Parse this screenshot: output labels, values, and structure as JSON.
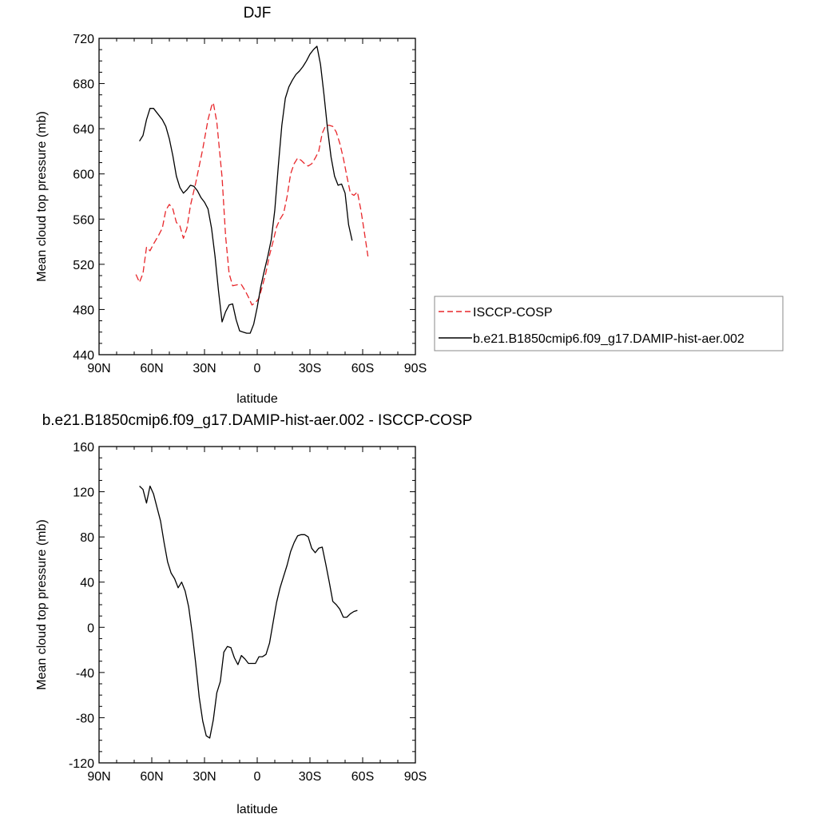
{
  "chart_data": [
    {
      "type": "line",
      "title": "DJF",
      "xlabel": "latitude",
      "ylabel": "Mean cloud top pressure (mb)",
      "xlim": [
        -90,
        90
      ],
      "ylim": [
        440,
        720
      ],
      "xticks": [
        {
          "value": -90,
          "label": "90N"
        },
        {
          "value": -60,
          "label": "60N"
        },
        {
          "value": -30,
          "label": "30N"
        },
        {
          "value": 0,
          "label": "0"
        },
        {
          "value": 30,
          "label": "30S"
        },
        {
          "value": 60,
          "label": "60S"
        },
        {
          "value": 90,
          "label": "90S"
        }
      ],
      "yticks": [
        440,
        480,
        520,
        560,
        600,
        640,
        680,
        720
      ],
      "legend_position": "right",
      "series": [
        {
          "name": "ISCCP-COSP",
          "color": "#e8262a",
          "dash": "dashed",
          "points": [
            [
              -69,
              511
            ],
            [
              -67,
              504
            ],
            [
              -65,
              512
            ],
            [
              -63,
              535
            ],
            [
              -61,
              532
            ],
            [
              -59,
              538
            ],
            [
              -56,
              546
            ],
            [
              -54,
              552
            ],
            [
              -52,
              568
            ],
            [
              -50,
              573
            ],
            [
              -48,
              569
            ],
            [
              -46,
              557
            ],
            [
              -44,
              554
            ],
            [
              -42,
              543
            ],
            [
              -40,
              552
            ],
            [
              -38,
              572
            ],
            [
              -35,
              592
            ],
            [
              -31,
              622
            ],
            [
              -28,
              648
            ],
            [
              -26,
              660
            ],
            [
              -25,
              663
            ],
            [
              -23,
              646
            ],
            [
              -20,
              597
            ],
            [
              -18,
              545
            ],
            [
              -16,
              512
            ],
            [
              -14,
              501
            ],
            [
              -11,
              502
            ],
            [
              -9,
              502
            ],
            [
              -7,
              497
            ],
            [
              -5,
              491
            ],
            [
              -3,
              484
            ],
            [
              -1,
              486
            ],
            [
              1,
              490
            ],
            [
              3,
              501
            ],
            [
              5,
              513
            ],
            [
              7,
              528
            ],
            [
              9,
              540
            ],
            [
              11,
              553
            ],
            [
              13,
              560
            ],
            [
              15,
              565
            ],
            [
              17,
              580
            ],
            [
              19,
              600
            ],
            [
              21,
              609
            ],
            [
              23,
              614
            ],
            [
              25,
              612
            ],
            [
              27,
              609
            ],
            [
              29,
              607
            ],
            [
              31,
              609
            ],
            [
              33,
              614
            ],
            [
              35,
              620
            ],
            [
              37,
              636
            ],
            [
              39,
              643
            ],
            [
              41,
              643
            ],
            [
              43,
              642
            ],
            [
              45,
              637
            ],
            [
              47,
              627
            ],
            [
              49,
              614
            ],
            [
              51,
              598
            ],
            [
              53,
              583
            ],
            [
              55,
              581
            ],
            [
              57,
              584
            ],
            [
              59,
              568
            ],
            [
              61,
              548
            ],
            [
              63,
              527
            ]
          ]
        },
        {
          "name": "b.e21.B1850cmip6.f09_g17.DAMIP-hist-aer.002",
          "color": "#000000",
          "dash": "solid",
          "points": [
            [
              -67,
              629
            ],
            [
              -65,
              634
            ],
            [
              -63,
              648
            ],
            [
              -61,
              658
            ],
            [
              -59,
              658
            ],
            [
              -57,
              654
            ],
            [
              -54,
              648
            ],
            [
              -52,
              642
            ],
            [
              -50,
              631
            ],
            [
              -48,
              616
            ],
            [
              -46,
              598
            ],
            [
              -44,
              588
            ],
            [
              -42,
              583
            ],
            [
              -40,
              586
            ],
            [
              -38,
              590
            ],
            [
              -36,
              589
            ],
            [
              -34,
              585
            ],
            [
              -32,
              579
            ],
            [
              -30,
              575
            ],
            [
              -28,
              569
            ],
            [
              -26,
              552
            ],
            [
              -24,
              527
            ],
            [
              -22,
              496
            ],
            [
              -20,
              469
            ],
            [
              -18,
              478
            ],
            [
              -16,
              484
            ],
            [
              -14,
              485
            ],
            [
              -12,
              471
            ],
            [
              -10,
              461
            ],
            [
              -8,
              460
            ],
            [
              -6,
              459
            ],
            [
              -4,
              459
            ],
            [
              -2,
              467
            ],
            [
              0,
              482
            ],
            [
              2,
              500
            ],
            [
              4,
              514
            ],
            [
              6,
              527
            ],
            [
              8,
              542
            ],
            [
              10,
              568
            ],
            [
              12,
              607
            ],
            [
              14,
              643
            ],
            [
              16,
              667
            ],
            [
              18,
              677
            ],
            [
              20,
              683
            ],
            [
              22,
              688
            ],
            [
              24,
              691
            ],
            [
              26,
              695
            ],
            [
              28,
              700
            ],
            [
              30,
              706
            ],
            [
              32,
              710
            ],
            [
              34,
              713
            ],
            [
              36,
              697
            ],
            [
              38,
              670
            ],
            [
              40,
              640
            ],
            [
              42,
              615
            ],
            [
              44,
              598
            ],
            [
              46,
              590
            ],
            [
              48,
              591
            ],
            [
              50,
              583
            ],
            [
              52,
              555
            ],
            [
              54,
              541
            ]
          ]
        }
      ]
    },
    {
      "type": "line",
      "title": "b.e21.B1850cmip6.f09_g17.DAMIP-hist-aer.002 - ISCCP-COSP",
      "xlabel": "latitude",
      "ylabel": "Mean cloud top pressure (mb)",
      "xlim": [
        -90,
        90
      ],
      "ylim": [
        -120,
        160
      ],
      "xticks": [
        {
          "value": -90,
          "label": "90N"
        },
        {
          "value": -60,
          "label": "60N"
        },
        {
          "value": -30,
          "label": "30N"
        },
        {
          "value": 0,
          "label": "0"
        },
        {
          "value": 30,
          "label": "30S"
        },
        {
          "value": 60,
          "label": "60S"
        },
        {
          "value": 90,
          "label": "90S"
        }
      ],
      "yticks": [
        -120,
        -80,
        -40,
        0,
        40,
        80,
        120,
        160
      ],
      "series": [
        {
          "color": "#000000",
          "dash": "solid",
          "points": [
            [
              -67,
              125
            ],
            [
              -65,
              122
            ],
            [
              -63,
              110
            ],
            [
              -61,
              125
            ],
            [
              -59,
              118
            ],
            [
              -57,
              106
            ],
            [
              -55,
              94
            ],
            [
              -53,
              75
            ],
            [
              -51,
              58
            ],
            [
              -49,
              48
            ],
            [
              -47,
              43
            ],
            [
              -45,
              35
            ],
            [
              -43,
              40
            ],
            [
              -41,
              32
            ],
            [
              -39,
              18
            ],
            [
              -37,
              -5
            ],
            [
              -35,
              -32
            ],
            [
              -33,
              -62
            ],
            [
              -31,
              -83
            ],
            [
              -29,
              -96
            ],
            [
              -27,
              -98
            ],
            [
              -25,
              -82
            ],
            [
              -23,
              -58
            ],
            [
              -21,
              -48
            ],
            [
              -19,
              -22
            ],
            [
              -17,
              -17
            ],
            [
              -15,
              -18
            ],
            [
              -13,
              -27
            ],
            [
              -11,
              -33
            ],
            [
              -9,
              -25
            ],
            [
              -7,
              -28
            ],
            [
              -5,
              -32
            ],
            [
              -3,
              -32
            ],
            [
              -1,
              -32
            ],
            [
              1,
              -26
            ],
            [
              3,
              -26
            ],
            [
              5,
              -24
            ],
            [
              7,
              -14
            ],
            [
              9,
              4
            ],
            [
              11,
              22
            ],
            [
              13,
              35
            ],
            [
              15,
              45
            ],
            [
              17,
              55
            ],
            [
              19,
              67
            ],
            [
              21,
              75
            ],
            [
              23,
              81
            ],
            [
              25,
              82
            ],
            [
              27,
              82
            ],
            [
              29,
              80
            ],
            [
              31,
              70
            ],
            [
              33,
              66
            ],
            [
              35,
              70
            ],
            [
              37,
              71
            ],
            [
              39,
              56
            ],
            [
              41,
              40
            ],
            [
              43,
              23
            ],
            [
              45,
              20
            ],
            [
              47,
              16
            ],
            [
              49,
              9
            ],
            [
              51,
              9
            ],
            [
              53,
              12
            ],
            [
              55,
              14
            ],
            [
              57,
              15
            ]
          ]
        }
      ]
    }
  ]
}
